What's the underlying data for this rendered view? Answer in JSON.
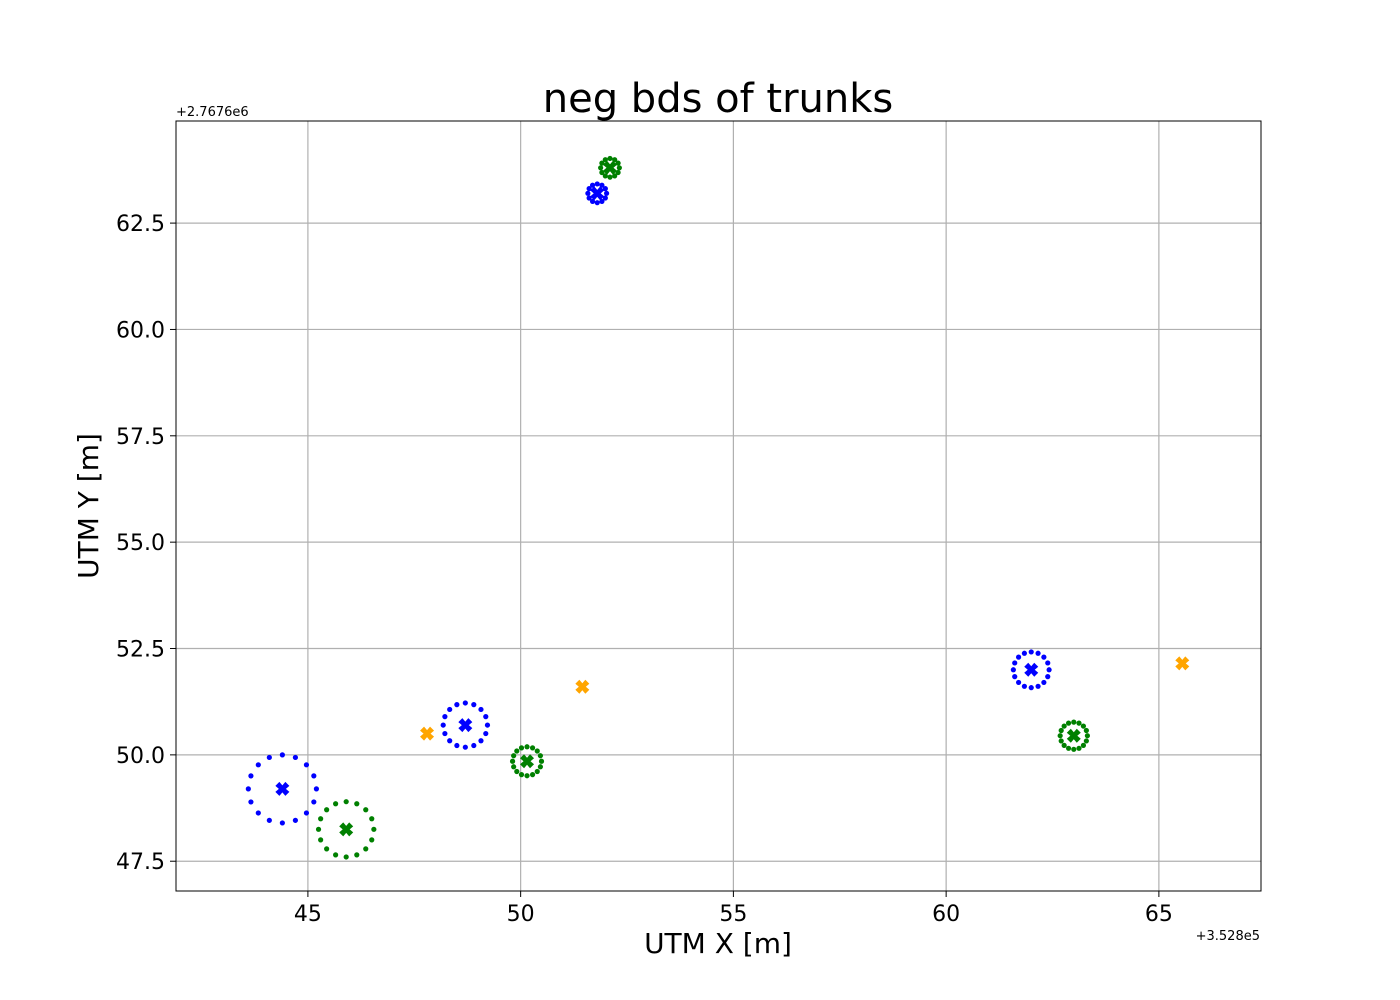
{
  "chart_data": {
    "type": "scatter",
    "title": "neg bds of trunks",
    "xlabel": "UTM X [m]",
    "ylabel": "UTM Y [m]",
    "x_offset_label": "+3.528e5",
    "y_offset_label": "+2.7676e6",
    "xlim": [
      41.9,
      67.4
    ],
    "ylim": [
      46.8,
      64.9
    ],
    "xticks": [
      45,
      50,
      55,
      60,
      65
    ],
    "xtick_labels": [
      "45",
      "50",
      "55",
      "60",
      "65"
    ],
    "yticks": [
      47.5,
      50.0,
      52.5,
      55.0,
      57.5,
      60.0,
      62.5
    ],
    "ytick_labels": [
      "47.5",
      "50.0",
      "52.5",
      "55.0",
      "57.5",
      "60.0",
      "62.5"
    ],
    "grid": true,
    "colors": {
      "blue": "#0000ff",
      "green": "#008000",
      "orange": "#ffa500",
      "grid": "#b0b0b0"
    },
    "series": [
      {
        "color": "blue",
        "marker": "x",
        "points": [
          {
            "x": 44.4,
            "y": 49.2
          },
          {
            "x": 48.7,
            "y": 50.7
          },
          {
            "x": 51.8,
            "y": 63.2
          },
          {
            "x": 62.0,
            "y": 52.0
          }
        ]
      },
      {
        "color": "green",
        "marker": "x",
        "points": [
          {
            "x": 45.9,
            "y": 48.25
          },
          {
            "x": 50.15,
            "y": 49.85
          },
          {
            "x": 52.1,
            "y": 63.8
          },
          {
            "x": 63.0,
            "y": 50.45
          }
        ]
      },
      {
        "color": "orange",
        "marker": "x",
        "points": [
          {
            "x": 47.8,
            "y": 50.5
          },
          {
            "x": 51.45,
            "y": 51.6
          },
          {
            "x": 65.55,
            "y": 52.15
          }
        ]
      }
    ],
    "circles": [
      {
        "color": "blue",
        "cx": 44.4,
        "cy": 49.2,
        "r": 0.8,
        "n": 16
      },
      {
        "color": "blue",
        "cx": 48.7,
        "cy": 50.7,
        "r": 0.52,
        "n": 16
      },
      {
        "color": "blue",
        "cx": 51.8,
        "cy": 63.2,
        "r": 0.22,
        "n": 12
      },
      {
        "color": "blue",
        "cx": 62.0,
        "cy": 52.0,
        "r": 0.42,
        "n": 16
      },
      {
        "color": "green",
        "cx": 45.9,
        "cy": 48.25,
        "r": 0.65,
        "n": 16
      },
      {
        "color": "green",
        "cx": 50.15,
        "cy": 49.85,
        "r": 0.34,
        "n": 16
      },
      {
        "color": "green",
        "cx": 52.1,
        "cy": 63.8,
        "r": 0.22,
        "n": 12
      },
      {
        "color": "green",
        "cx": 63.0,
        "cy": 50.45,
        "r": 0.32,
        "n": 16
      }
    ]
  }
}
